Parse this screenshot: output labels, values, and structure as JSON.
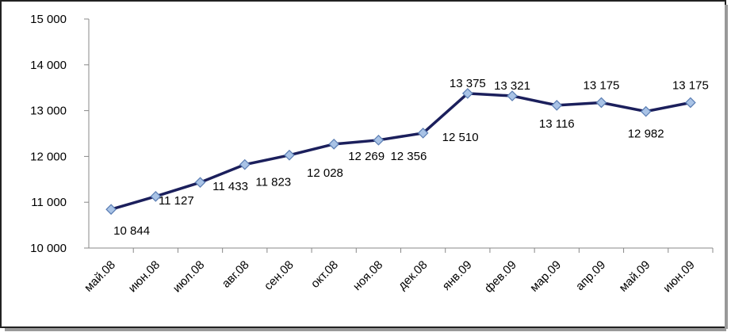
{
  "chart_data": {
    "type": "line",
    "categories": [
      "май.08",
      "июн.08",
      "июл.08",
      "авг.08",
      "сен.08",
      "окт.08",
      "ноя.08",
      "дек.08",
      "янв.09",
      "фев.09",
      "мар.09",
      "апр.09",
      "май.09",
      "июн.09"
    ],
    "series": [
      {
        "color": "#1b1f5c",
        "values": [
          10844,
          11127,
          11433,
          11823,
          12028,
          12269,
          12356,
          12510,
          13375,
          13321,
          13116,
          13175,
          12982,
          13175
        ],
        "value_labels": [
          "10 844",
          "11 127",
          "11 433",
          "11 823",
          "12 028",
          "12 269",
          "12 356",
          "12 510",
          "13 375",
          "13 321",
          "13 116",
          "13 175",
          "12 982",
          "13 175"
        ]
      }
    ],
    "ylim": [
      10000,
      15000
    ],
    "yticks": [
      {
        "value": 10000,
        "label": "10 000"
      },
      {
        "value": 11000,
        "label": "11 000"
      },
      {
        "value": 12000,
        "label": "12 000"
      },
      {
        "value": 13000,
        "label": "13 000"
      },
      {
        "value": 14000,
        "label": "14 000"
      },
      {
        "value": 15000,
        "label": "15 000"
      }
    ],
    "grid": false
  }
}
